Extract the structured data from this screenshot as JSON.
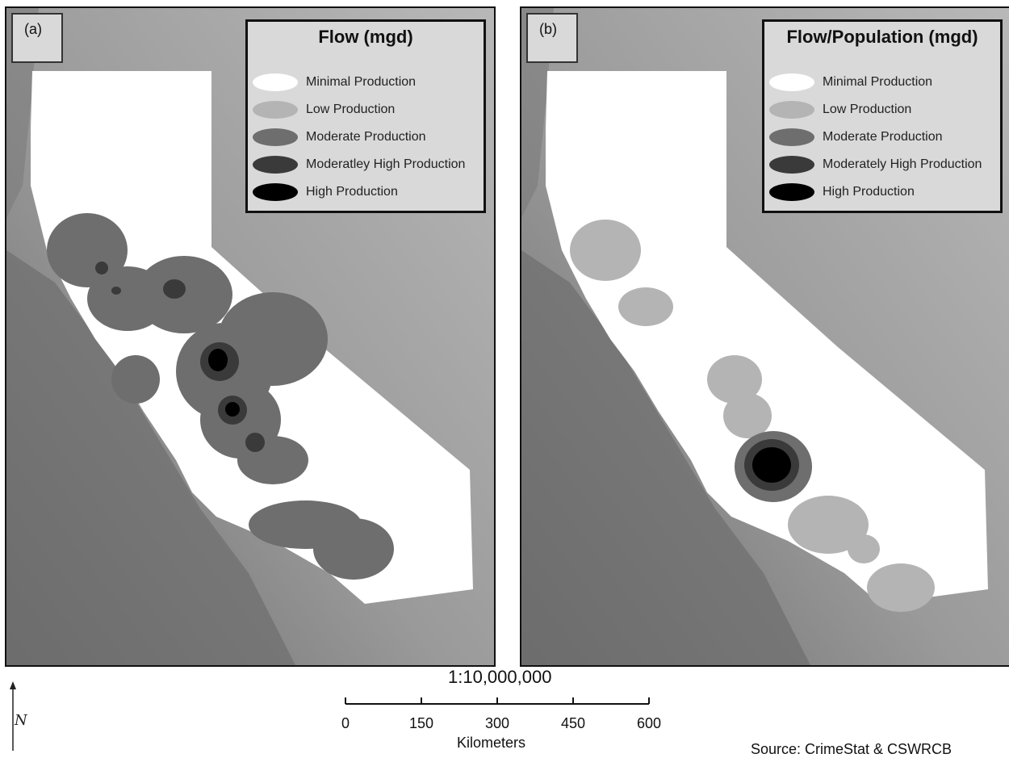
{
  "panels": [
    {
      "id": "a",
      "label": "(a)",
      "legend": {
        "title": "Flow (mgd)",
        "items": [
          {
            "label": "Minimal Production",
            "color": "#ffffff"
          },
          {
            "label": "Low Production",
            "color": "#b4b4b4"
          },
          {
            "label": "Moderate Production",
            "color": "#6e6e6e"
          },
          {
            "label": "Moderatley High Production",
            "color": "#3a3a3a"
          },
          {
            "label": "High Production",
            "color": "#000000"
          }
        ]
      }
    },
    {
      "id": "b",
      "label": "(b)",
      "legend": {
        "title": "Flow/Population (mgd)",
        "items": [
          {
            "label": "Minimal Production",
            "color": "#ffffff"
          },
          {
            "label": "Low Production",
            "color": "#b4b4b4"
          },
          {
            "label": "Moderate Production",
            "color": "#6e6e6e"
          },
          {
            "label": "Moderately High Production",
            "color": "#3a3a3a"
          },
          {
            "label": "High Production",
            "color": "#000000"
          }
        ]
      }
    }
  ],
  "scale": {
    "ratio": "1:10,000,000",
    "ticks": [
      "0",
      "150",
      "300",
      "450",
      "600"
    ],
    "units": "Kilometers"
  },
  "source": "Source: CrimeStat & CSWRCB"
}
